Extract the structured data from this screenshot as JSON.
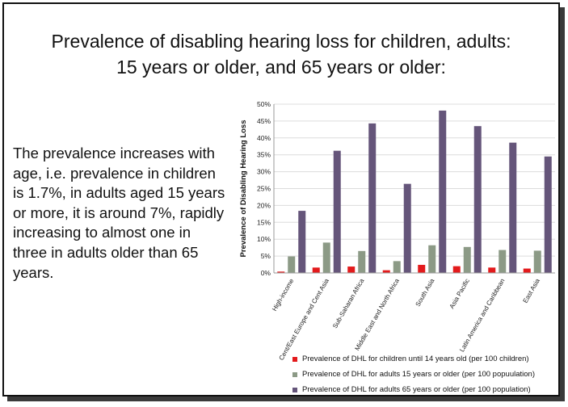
{
  "slide": {
    "title_line1": "Prevalence of disabling hearing loss for children, adults:",
    "title_line2": "15 years or older, and 65 years or older:",
    "body": "The prevalence increases with age, i.e. prevalence in children is 1.7%, in adults aged 15 years or more, it is around 7%, rapidly increasing to almost one in three in adults older than 65 years."
  },
  "chart_data": {
    "type": "bar",
    "title": "",
    "xlabel": "",
    "ylabel": "Prevalence of Disabling Hearing Loss",
    "ylim": [
      0,
      50
    ],
    "yticks": [
      "0%",
      "5%",
      "10%",
      "15%",
      "20%",
      "25%",
      "30%",
      "35%",
      "40%",
      "45%",
      "50%"
    ],
    "grid": true,
    "legend_position": "bottom",
    "categories": [
      "High-income",
      "Cent/East Europe and Cent Asia",
      "Sub-Saharan Africa",
      "Middle East and North Africa",
      "South Asia",
      "Asia Pacific",
      "Latin America and Caribbean",
      "East Asia"
    ],
    "series": [
      {
        "name": "Prevalence of DHL for children until 14 years old (per 100 children)",
        "color": "#e31a1c",
        "values": [
          0.4,
          1.6,
          1.9,
          0.8,
          2.4,
          2.0,
          1.6,
          1.3
        ]
      },
      {
        "name": "Prevalence of DHL for adults 15 years or older (per 100 popuulation)",
        "color": "#8c9a86",
        "values": [
          4.9,
          9.0,
          6.5,
          3.5,
          8.2,
          7.7,
          6.8,
          6.6
        ]
      },
      {
        "name": "Prevalence of DHL for adults 65 years or older (per 100 population)",
        "color": "#65557a",
        "values": [
          18.4,
          36.2,
          44.3,
          26.4,
          48.1,
          43.5,
          38.6,
          34.5
        ]
      }
    ]
  }
}
